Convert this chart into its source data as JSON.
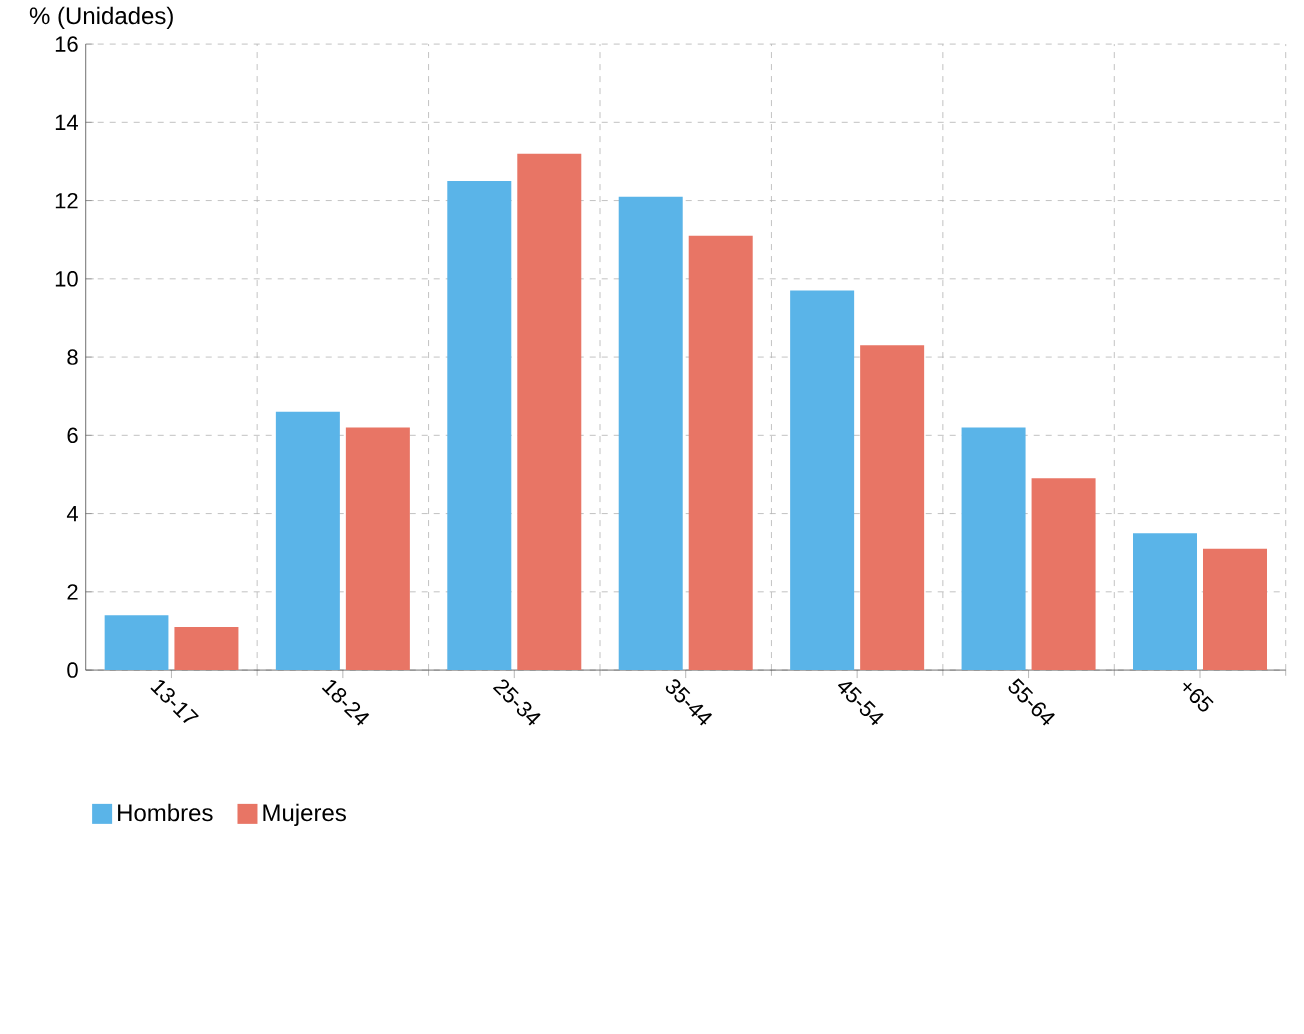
{
  "chart_data": {
    "type": "bar",
    "ylabel": "% (Unidades)",
    "categories": [
      "13-17",
      "18-24",
      "25-34",
      "35-44",
      "45-54",
      "55-64",
      "+65"
    ],
    "series": [
      {
        "name": "Hombres",
        "color": "#5ab4e8",
        "values": [
          1.4,
          6.6,
          12.5,
          12.1,
          9.7,
          6.2,
          3.5
        ]
      },
      {
        "name": "Mujeres",
        "color": "#e87565",
        "values": [
          1.1,
          6.2,
          13.2,
          11.1,
          8.3,
          4.9,
          3.1
        ]
      }
    ],
    "ylim": [
      0,
      16
    ],
    "yticks": [
      0,
      2,
      4,
      6,
      8,
      10,
      12,
      14,
      16
    ],
    "grid": true,
    "legend": "bottom left"
  }
}
